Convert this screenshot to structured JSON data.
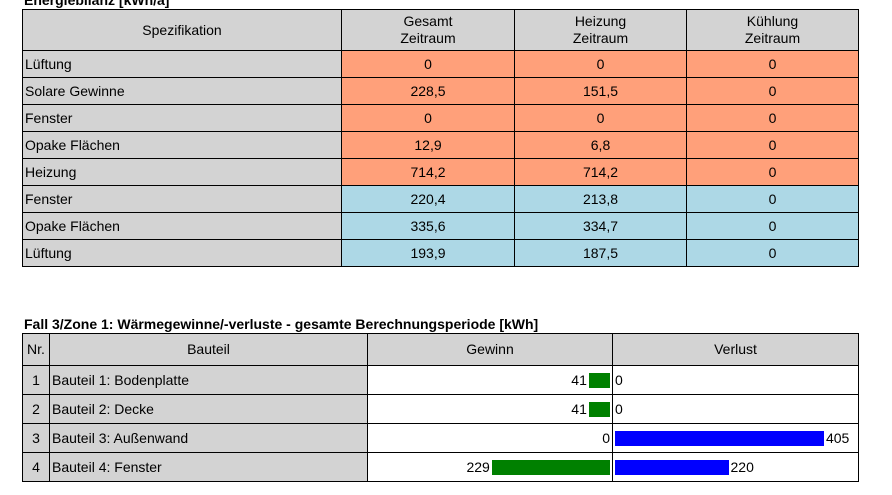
{
  "energy": {
    "title": "Energiebilanz [kWh/a]",
    "headers": [
      [
        "Spezifikation",
        ""
      ],
      [
        "Gesamt",
        "Zeitraum"
      ],
      [
        "Heizung",
        "Zeitraum"
      ],
      [
        "Kühlung",
        "Zeitraum"
      ]
    ],
    "rows": [
      {
        "label": "Lüftung",
        "group": "gain",
        "values": [
          "0",
          "0",
          "0"
        ]
      },
      {
        "label": "Solare Gewinne",
        "group": "gain",
        "values": [
          "228,5",
          "151,5",
          "0"
        ]
      },
      {
        "label": "Fenster",
        "group": "gain",
        "values": [
          "0",
          "0",
          "0"
        ]
      },
      {
        "label": "Opake Flächen",
        "group": "gain",
        "values": [
          "12,9",
          "6,8",
          "0"
        ]
      },
      {
        "label": "Heizung",
        "group": "gain",
        "values": [
          "714,2",
          "714,2",
          "0"
        ]
      },
      {
        "label": "Fenster",
        "group": "loss",
        "values": [
          "220,4",
          "213,8",
          "0"
        ]
      },
      {
        "label": "Opake Flächen",
        "group": "loss",
        "values": [
          "335,6",
          "334,7",
          "0"
        ]
      },
      {
        "label": "Lüftung",
        "group": "loss",
        "values": [
          "193,9",
          "187,5",
          "0"
        ]
      }
    ],
    "colors": {
      "gain": "#ffa07a",
      "loss": "#add8e6"
    }
  },
  "components": {
    "title": "Fall 3/Zone 1: Wärmegewinne/-verluste - gesamte Berechnungsperiode [kWh]",
    "headers": {
      "nr": "Nr.",
      "bauteil": "Bauteil",
      "gewinn": "Gewinn",
      "verlust": "Verlust"
    },
    "rows": [
      {
        "nr": "1",
        "name": "Bauteil 1: Bodenplatte",
        "gewinn": 41,
        "verlust": 0
      },
      {
        "nr": "2",
        "name": "Bauteil 2: Decke",
        "gewinn": 41,
        "verlust": 0
      },
      {
        "nr": "3",
        "name": "Bauteil 3: Außenwand",
        "gewinn": 0,
        "verlust": 405
      },
      {
        "nr": "4",
        "name": "Bauteil 4: Fenster",
        "gewinn": 229,
        "verlust": 220
      }
    ],
    "colors": {
      "gewinn": "#008000",
      "verlust": "#0000ff"
    }
  }
}
